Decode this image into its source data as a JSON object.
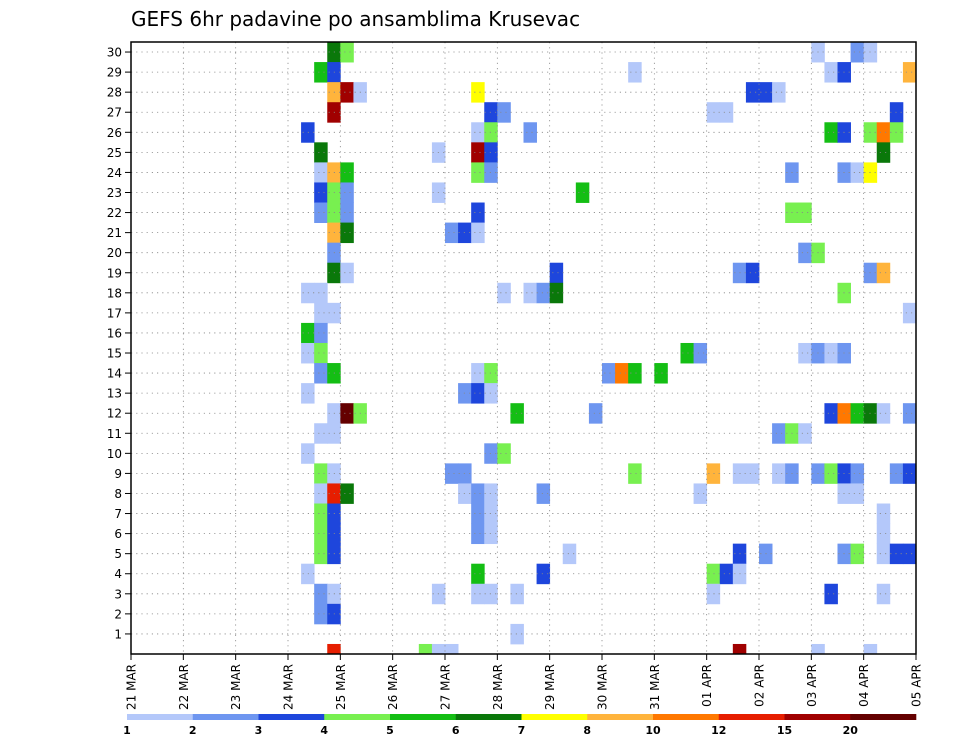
{
  "chart_data": {
    "type": "heatmap",
    "title": "GEFS 6hr padavine po ansamblima Krusevac",
    "xlabel": "",
    "ylabel": "",
    "x_ticks": [
      "21 MAR",
      "22 MAR",
      "23 MAR",
      "24 MAR",
      "25 MAR",
      "26 MAR",
      "27 MAR",
      "28 MAR",
      "29 MAR",
      "30 MAR",
      "31 MAR",
      "01 APR",
      "02 APR",
      "03 APR",
      "04 APR",
      "05 APR"
    ],
    "y_ticks": [
      "1",
      "2",
      "3",
      "4",
      "5",
      "6",
      "7",
      "8",
      "9",
      "10",
      "11",
      "12",
      "13",
      "14",
      "15",
      "16",
      "17",
      "18",
      "19",
      "20",
      "21",
      "22",
      "23",
      "24",
      "25",
      "26",
      "27",
      "28",
      "29",
      "30"
    ],
    "time_steps_per_day": 4,
    "total_steps": 60,
    "members": 31,
    "colorbar": {
      "labels": [
        "1",
        "2",
        "3",
        "4",
        "5",
        "6",
        "7",
        "8",
        "10",
        "12",
        "15",
        "20"
      ],
      "colors": [
        "#b4c8fa",
        "#6e96f0",
        "#1e46dc",
        "#78f050",
        "#14be14",
        "#0a780a",
        "#ffff00",
        "#ffb43c",
        "#ff7800",
        "#e61e00",
        "#a00000",
        "#640000"
      ]
    },
    "grid": true,
    "cells": [
      {
        "m": 30,
        "t": 16,
        "c": 6
      },
      {
        "m": 30,
        "t": 17,
        "c": 4
      },
      {
        "m": 30,
        "t": 53,
        "c": 1
      },
      {
        "m": 30,
        "t": 56,
        "c": 2
      },
      {
        "m": 30,
        "t": 57,
        "c": 1
      },
      {
        "m": 29,
        "t": 15,
        "c": 5
      },
      {
        "m": 29,
        "t": 16,
        "c": 3
      },
      {
        "m": 29,
        "t": 39,
        "c": 1
      },
      {
        "m": 29,
        "t": 54,
        "c": 1
      },
      {
        "m": 29,
        "t": 55,
        "c": 3
      },
      {
        "m": 29,
        "t": 60,
        "c": 8
      },
      {
        "m": 28,
        "t": 16,
        "c": 8
      },
      {
        "m": 28,
        "t": 17,
        "c": 11
      },
      {
        "m": 28,
        "t": 18,
        "c": 1
      },
      {
        "m": 28,
        "t": 27,
        "c": 7
      },
      {
        "m": 28,
        "t": 48,
        "c": 3
      },
      {
        "m": 28,
        "t": 49,
        "c": 3
      },
      {
        "m": 28,
        "t": 50,
        "c": 1
      },
      {
        "m": 27,
        "t": 16,
        "c": 11
      },
      {
        "m": 27,
        "t": 28,
        "c": 3
      },
      {
        "m": 27,
        "t": 29,
        "c": 2
      },
      {
        "m": 27,
        "t": 45,
        "c": 1
      },
      {
        "m": 27,
        "t": 46,
        "c": 1
      },
      {
        "m": 27,
        "t": 59,
        "c": 3
      },
      {
        "m": 26,
        "t": 14,
        "c": 3
      },
      {
        "m": 26,
        "t": 27,
        "c": 1
      },
      {
        "m": 26,
        "t": 28,
        "c": 4
      },
      {
        "m": 26,
        "t": 31,
        "c": 2
      },
      {
        "m": 26,
        "t": 54,
        "c": 5
      },
      {
        "m": 26,
        "t": 55,
        "c": 3
      },
      {
        "m": 26,
        "t": 57,
        "c": 4
      },
      {
        "m": 26,
        "t": 58,
        "c": 9
      },
      {
        "m": 26,
        "t": 59,
        "c": 4
      },
      {
        "m": 25,
        "t": 15,
        "c": 6
      },
      {
        "m": 25,
        "t": 24,
        "c": 1
      },
      {
        "m": 25,
        "t": 27,
        "c": 11
      },
      {
        "m": 25,
        "t": 28,
        "c": 3
      },
      {
        "m": 25,
        "t": 58,
        "c": 6
      },
      {
        "m": 24,
        "t": 15,
        "c": 1
      },
      {
        "m": 24,
        "t": 16,
        "c": 8
      },
      {
        "m": 24,
        "t": 17,
        "c": 5
      },
      {
        "m": 24,
        "t": 27,
        "c": 4
      },
      {
        "m": 24,
        "t": 28,
        "c": 2
      },
      {
        "m": 24,
        "t": 51,
        "c": 2
      },
      {
        "m": 24,
        "t": 55,
        "c": 2
      },
      {
        "m": 24,
        "t": 56,
        "c": 1
      },
      {
        "m": 24,
        "t": 57,
        "c": 7
      },
      {
        "m": 23,
        "t": 15,
        "c": 3
      },
      {
        "m": 23,
        "t": 16,
        "c": 4
      },
      {
        "m": 23,
        "t": 17,
        "c": 2
      },
      {
        "m": 23,
        "t": 24,
        "c": 1
      },
      {
        "m": 23,
        "t": 35,
        "c": 5
      },
      {
        "m": 22,
        "t": 15,
        "c": 2
      },
      {
        "m": 22,
        "t": 16,
        "c": 4
      },
      {
        "m": 22,
        "t": 17,
        "c": 2
      },
      {
        "m": 22,
        "t": 27,
        "c": 3
      },
      {
        "m": 22,
        "t": 51,
        "c": 4
      },
      {
        "m": 22,
        "t": 52,
        "c": 4
      },
      {
        "m": 21,
        "t": 16,
        "c": 8
      },
      {
        "m": 21,
        "t": 17,
        "c": 6
      },
      {
        "m": 21,
        "t": 25,
        "c": 2
      },
      {
        "m": 21,
        "t": 26,
        "c": 3
      },
      {
        "m": 21,
        "t": 27,
        "c": 1
      },
      {
        "m": 20,
        "t": 16,
        "c": 2
      },
      {
        "m": 20,
        "t": 52,
        "c": 2
      },
      {
        "m": 20,
        "t": 53,
        "c": 4
      },
      {
        "m": 19,
        "t": 16,
        "c": 6
      },
      {
        "m": 19,
        "t": 17,
        "c": 1
      },
      {
        "m": 19,
        "t": 33,
        "c": 3
      },
      {
        "m": 19,
        "t": 47,
        "c": 2
      },
      {
        "m": 19,
        "t": 48,
        "c": 3
      },
      {
        "m": 19,
        "t": 57,
        "c": 2
      },
      {
        "m": 19,
        "t": 58,
        "c": 8
      },
      {
        "m": 18,
        "t": 14,
        "c": 1
      },
      {
        "m": 18,
        "t": 15,
        "c": 1
      },
      {
        "m": 18,
        "t": 29,
        "c": 1
      },
      {
        "m": 18,
        "t": 31,
        "c": 1
      },
      {
        "m": 18,
        "t": 32,
        "c": 2
      },
      {
        "m": 18,
        "t": 33,
        "c": 6
      },
      {
        "m": 18,
        "t": 55,
        "c": 4
      },
      {
        "m": 17,
        "t": 15,
        "c": 1
      },
      {
        "m": 17,
        "t": 16,
        "c": 1
      },
      {
        "m": 17,
        "t": 60,
        "c": 1
      },
      {
        "m": 16,
        "t": 14,
        "c": 5
      },
      {
        "m": 16,
        "t": 15,
        "c": 2
      },
      {
        "m": 15,
        "t": 14,
        "c": 1
      },
      {
        "m": 15,
        "t": 15,
        "c": 4
      },
      {
        "m": 15,
        "t": 43,
        "c": 5
      },
      {
        "m": 15,
        "t": 44,
        "c": 2
      },
      {
        "m": 15,
        "t": 52,
        "c": 1
      },
      {
        "m": 15,
        "t": 53,
        "c": 2
      },
      {
        "m": 15,
        "t": 54,
        "c": 1
      },
      {
        "m": 15,
        "t": 55,
        "c": 2
      },
      {
        "m": 14,
        "t": 15,
        "c": 2
      },
      {
        "m": 14,
        "t": 16,
        "c": 5
      },
      {
        "m": 14,
        "t": 27,
        "c": 1
      },
      {
        "m": 14,
        "t": 28,
        "c": 4
      },
      {
        "m": 14,
        "t": 37,
        "c": 2
      },
      {
        "m": 14,
        "t": 38,
        "c": 9
      },
      {
        "m": 14,
        "t": 39,
        "c": 5
      },
      {
        "m": 14,
        "t": 41,
        "c": 5
      },
      {
        "m": 13,
        "t": 14,
        "c": 1
      },
      {
        "m": 13,
        "t": 26,
        "c": 2
      },
      {
        "m": 13,
        "t": 27,
        "c": 3
      },
      {
        "m": 13,
        "t": 28,
        "c": 1
      },
      {
        "m": 12,
        "t": 16,
        "c": 1
      },
      {
        "m": 12,
        "t": 17,
        "c": 12
      },
      {
        "m": 12,
        "t": 18,
        "c": 4
      },
      {
        "m": 12,
        "t": 30,
        "c": 5
      },
      {
        "m": 12,
        "t": 36,
        "c": 2
      },
      {
        "m": 12,
        "t": 54,
        "c": 3
      },
      {
        "m": 12,
        "t": 55,
        "c": 9
      },
      {
        "m": 12,
        "t": 56,
        "c": 5
      },
      {
        "m": 12,
        "t": 57,
        "c": 6
      },
      {
        "m": 12,
        "t": 58,
        "c": 1
      },
      {
        "m": 12,
        "t": 60,
        "c": 2
      },
      {
        "m": 11,
        "t": 15,
        "c": 1
      },
      {
        "m": 11,
        "t": 16,
        "c": 1
      },
      {
        "m": 11,
        "t": 50,
        "c": 2
      },
      {
        "m": 11,
        "t": 51,
        "c": 4
      },
      {
        "m": 11,
        "t": 52,
        "c": 1
      },
      {
        "m": 10,
        "t": 14,
        "c": 1
      },
      {
        "m": 10,
        "t": 28,
        "c": 2
      },
      {
        "m": 10,
        "t": 29,
        "c": 4
      },
      {
        "m": 9,
        "t": 15,
        "c": 4
      },
      {
        "m": 9,
        "t": 16,
        "c": 1
      },
      {
        "m": 9,
        "t": 25,
        "c": 2
      },
      {
        "m": 9,
        "t": 26,
        "c": 2
      },
      {
        "m": 9,
        "t": 39,
        "c": 4
      },
      {
        "m": 9,
        "t": 45,
        "c": 8
      },
      {
        "m": 9,
        "t": 47,
        "c": 1
      },
      {
        "m": 9,
        "t": 48,
        "c": 1
      },
      {
        "m": 9,
        "t": 50,
        "c": 1
      },
      {
        "m": 9,
        "t": 51,
        "c": 2
      },
      {
        "m": 9,
        "t": 53,
        "c": 2
      },
      {
        "m": 9,
        "t": 54,
        "c": 4
      },
      {
        "m": 9,
        "t": 55,
        "c": 3
      },
      {
        "m": 9,
        "t": 56,
        "c": 2
      },
      {
        "m": 9,
        "t": 59,
        "c": 2
      },
      {
        "m": 9,
        "t": 60,
        "c": 3
      },
      {
        "m": 8,
        "t": 15,
        "c": 1
      },
      {
        "m": 8,
        "t": 16,
        "c": 10
      },
      {
        "m": 8,
        "t": 17,
        "c": 6
      },
      {
        "m": 8,
        "t": 26,
        "c": 1
      },
      {
        "m": 8,
        "t": 27,
        "c": 2
      },
      {
        "m": 8,
        "t": 28,
        "c": 1
      },
      {
        "m": 8,
        "t": 32,
        "c": 2
      },
      {
        "m": 8,
        "t": 44,
        "c": 1
      },
      {
        "m": 8,
        "t": 55,
        "c": 1
      },
      {
        "m": 8,
        "t": 56,
        "c": 1
      },
      {
        "m": 7,
        "t": 15,
        "c": 4
      },
      {
        "m": 7,
        "t": 16,
        "c": 3
      },
      {
        "m": 7,
        "t": 27,
        "c": 2
      },
      {
        "m": 7,
        "t": 28,
        "c": 1
      },
      {
        "m": 7,
        "t": 58,
        "c": 1
      },
      {
        "m": 6,
        "t": 15,
        "c": 4
      },
      {
        "m": 6,
        "t": 16,
        "c": 3
      },
      {
        "m": 6,
        "t": 27,
        "c": 2
      },
      {
        "m": 6,
        "t": 28,
        "c": 1
      },
      {
        "m": 6,
        "t": 58,
        "c": 1
      },
      {
        "m": 5,
        "t": 15,
        "c": 4
      },
      {
        "m": 5,
        "t": 16,
        "c": 3
      },
      {
        "m": 5,
        "t": 34,
        "c": 1
      },
      {
        "m": 5,
        "t": 47,
        "c": 3
      },
      {
        "m": 5,
        "t": 49,
        "c": 2
      },
      {
        "m": 5,
        "t": 55,
        "c": 2
      },
      {
        "m": 5,
        "t": 56,
        "c": 4
      },
      {
        "m": 5,
        "t": 58,
        "c": 1
      },
      {
        "m": 5,
        "t": 59,
        "c": 3
      },
      {
        "m": 5,
        "t": 60,
        "c": 3
      },
      {
        "m": 4,
        "t": 14,
        "c": 1
      },
      {
        "m": 4,
        "t": 27,
        "c": 5
      },
      {
        "m": 4,
        "t": 32,
        "c": 3
      },
      {
        "m": 4,
        "t": 45,
        "c": 4
      },
      {
        "m": 4,
        "t": 46,
        "c": 3
      },
      {
        "m": 4,
        "t": 47,
        "c": 1
      },
      {
        "m": 3,
        "t": 15,
        "c": 2
      },
      {
        "m": 3,
        "t": 16,
        "c": 1
      },
      {
        "m": 3,
        "t": 24,
        "c": 1
      },
      {
        "m": 3,
        "t": 27,
        "c": 1
      },
      {
        "m": 3,
        "t": 28,
        "c": 1
      },
      {
        "m": 3,
        "t": 30,
        "c": 1
      },
      {
        "m": 3,
        "t": 45,
        "c": 1
      },
      {
        "m": 3,
        "t": 54,
        "c": 3
      },
      {
        "m": 3,
        "t": 58,
        "c": 1
      },
      {
        "m": 2,
        "t": 15,
        "c": 2
      },
      {
        "m": 2,
        "t": 16,
        "c": 3
      },
      {
        "m": 1,
        "t": 30,
        "c": 1
      },
      {
        "m": 0,
        "t": 16,
        "c": 10
      },
      {
        "m": 0,
        "t": 23,
        "c": 4
      },
      {
        "m": 0,
        "t": 24,
        "c": 1
      },
      {
        "m": 0,
        "t": 25,
        "c": 1
      },
      {
        "m": 0,
        "t": 47,
        "c": 11
      },
      {
        "m": 0,
        "t": 53,
        "c": 1
      },
      {
        "m": 0,
        "t": 57,
        "c": 1
      }
    ]
  }
}
